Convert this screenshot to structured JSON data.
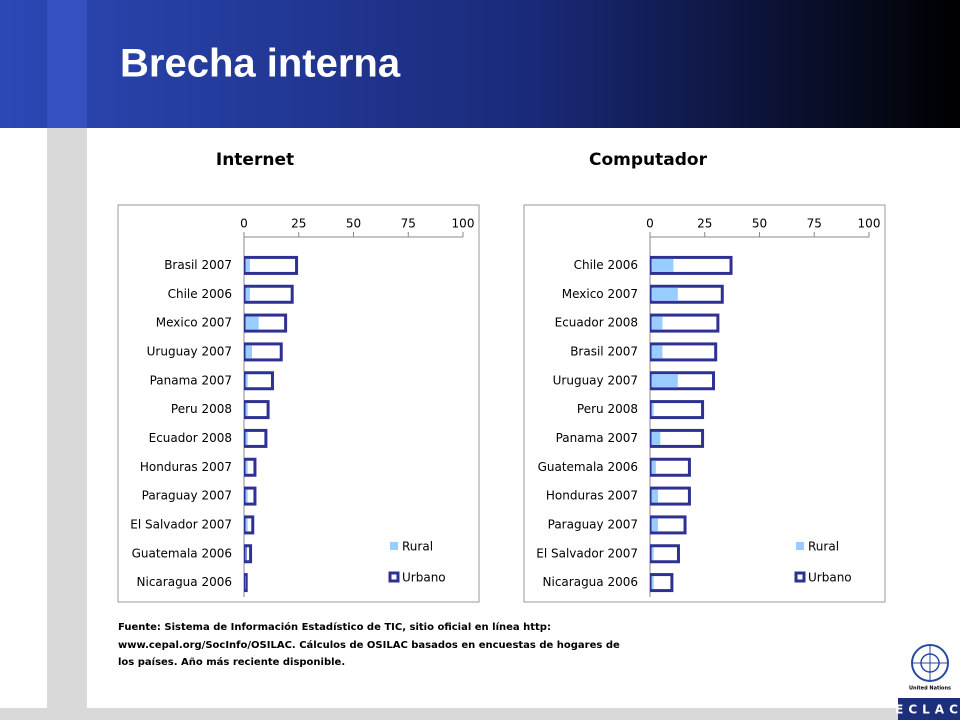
{
  "header": {
    "title": "Brecha interna"
  },
  "chart_data": [
    {
      "type": "bar",
      "orientation": "horizontal",
      "title": "Internet",
      "categories": [
        "Brasil 2007",
        "Chile 2006",
        "Mexico 2007",
        "Uruguay 2007",
        "Panama 2007",
        "Peru 2008",
        "Ecuador 2008",
        "Honduras 2007",
        "Paraguay 2007",
        "El Salvador 2007",
        "Guatemala 2006",
        "Nicaragua 2006"
      ],
      "series": [
        {
          "name": "Rural",
          "color": "#99ccff",
          "values": [
            2,
            2,
            6,
            3,
            1,
            1,
            1,
            1,
            1,
            1,
            0.5,
            0.2
          ]
        },
        {
          "name": "Urbano",
          "color": "#2e3192",
          "values": [
            24,
            22,
            19,
            17,
            13,
            11,
            10,
            5,
            5,
            4,
            3,
            1
          ]
        }
      ],
      "xlim": [
        0,
        100
      ],
      "xticks": [
        0,
        25,
        50,
        75,
        100
      ],
      "grid": false,
      "legend": "bottom-right"
    },
    {
      "type": "bar",
      "orientation": "horizontal",
      "title": "Computador",
      "categories": [
        "Chile 2006",
        "Mexico 2007",
        "Ecuador 2008",
        "Brasil 2007",
        "Uruguay 2007",
        "Peru 2008",
        "Panama 2007",
        "Guatemala 2006",
        "Honduras 2007",
        "Paraguay 2007",
        "El Salvador 2007",
        "Nicaragua 2006"
      ],
      "series": [
        {
          "name": "Rural",
          "color": "#99ccff",
          "values": [
            10,
            12,
            5,
            5,
            12,
            1,
            4,
            2,
            3,
            3,
            1,
            1
          ]
        },
        {
          "name": "Urbano",
          "color": "#2e3192",
          "values": [
            37,
            33,
            31,
            30,
            29,
            24,
            24,
            18,
            18,
            16,
            13,
            10
          ]
        }
      ],
      "xlim": [
        0,
        100
      ],
      "xticks": [
        0,
        25,
        50,
        75,
        100
      ],
      "grid": false,
      "legend": "bottom-right"
    }
  ],
  "footer": {
    "source": [
      "Fuente: Sistema de Información Estadístico de TIC, sitio oficial en línea http:",
      "www.cepal.org/SocInfo/OSILAC. Cálculos de OSILAC basados en encuestas de hogares de",
      "los países. Año más reciente disponible."
    ],
    "logo_caption": "United Nations",
    "logo_text": "ECLAC"
  }
}
